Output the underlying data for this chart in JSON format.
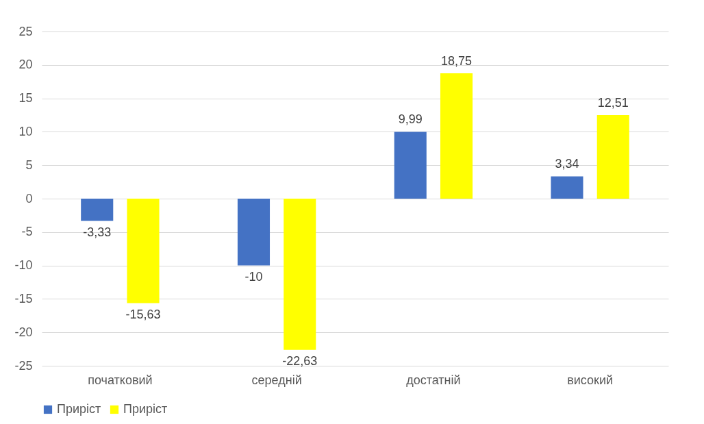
{
  "chart_data": {
    "type": "bar",
    "categories": [
      "початковий",
      "середній",
      "достатній",
      "високий"
    ],
    "series": [
      {
        "name": "Приріст",
        "color": "#4472c4",
        "values": [
          -3.33,
          -10,
          9.99,
          3.34
        ],
        "value_labels": [
          "-3,33",
          "-10",
          "9,99",
          "3,34"
        ]
      },
      {
        "name": "Приріст",
        "color": "#ffff00",
        "values": [
          -15.63,
          -22.63,
          18.75,
          12.51
        ],
        "value_labels": [
          "-15,63",
          "-22,63",
          "18,75",
          "12,51"
        ]
      }
    ],
    "ylim": [
      -25,
      25
    ],
    "yticks": [
      -25,
      -20,
      -15,
      -10,
      -5,
      0,
      5,
      10,
      15,
      20,
      25
    ],
    "grid": "y",
    "legend": "bottom"
  }
}
